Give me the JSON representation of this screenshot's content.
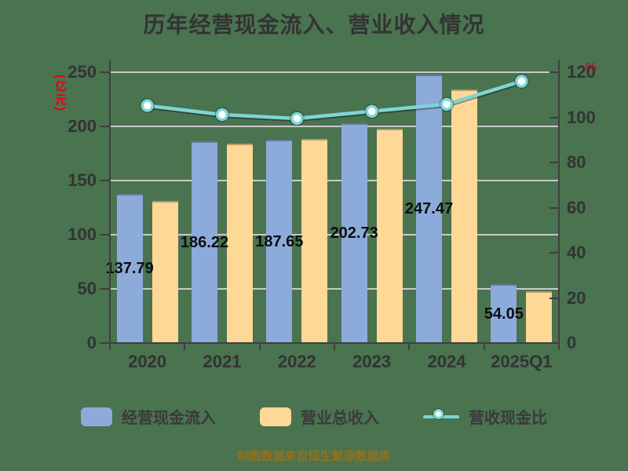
{
  "title": "历年经营现金流入、营业收入情况",
  "footer": "制图数据来自恒生聚源数据库",
  "colors": {
    "background": "#4a7350",
    "cash_inflow_bar": "#8cabdb",
    "revenue_bar": "#fed896",
    "ratio_line": "#7ed6d4",
    "axis": "#3f3f3f",
    "gridline": "#c9c9c9",
    "text": "#333333",
    "unit_accent": "#e60012",
    "footer_text": "#94711a"
  },
  "chart_data": {
    "type": "bar",
    "title": "历年经营现金流入、营业收入情况",
    "categories": [
      "2020",
      "2021",
      "2022",
      "2023",
      "2024",
      "2025Q1"
    ],
    "series": [
      {
        "name": "经营现金流入",
        "type": "bar",
        "axis": "left",
        "color": "#8cabdb",
        "values": [
          137.79,
          186.22,
          187.65,
          202.73,
          247.47,
          54.05
        ],
        "labels": [
          "137.79",
          "186.22",
          "187.65",
          "202.73",
          "247.47",
          "54.05"
        ]
      },
      {
        "name": "营业总收入",
        "type": "bar",
        "axis": "left",
        "color": "#fed896",
        "values": [
          131.0,
          184.0,
          188.6,
          197.5,
          234.0,
          48.0
        ]
      },
      {
        "name": "营收现金比",
        "type": "line",
        "axis": "right",
        "color": "#7ed6d4",
        "marker": "circle",
        "values": [
          105.2,
          101.2,
          99.5,
          102.7,
          105.8,
          116.0
        ]
      }
    ],
    "left_axis": {
      "unit": "(亿元)",
      "min": 0,
      "max": 250,
      "step": 50,
      "ticks": [
        "0",
        "50",
        "100",
        "150",
        "200",
        "250"
      ]
    },
    "right_axis": {
      "unit": "%",
      "min": 0,
      "max": 120,
      "step": 20,
      "ticks": [
        "0",
        "20",
        "40",
        "60",
        "80",
        "100",
        "120"
      ]
    },
    "grid": true,
    "legend_position": "bottom",
    "value_labels_series": "经营现金流入"
  }
}
